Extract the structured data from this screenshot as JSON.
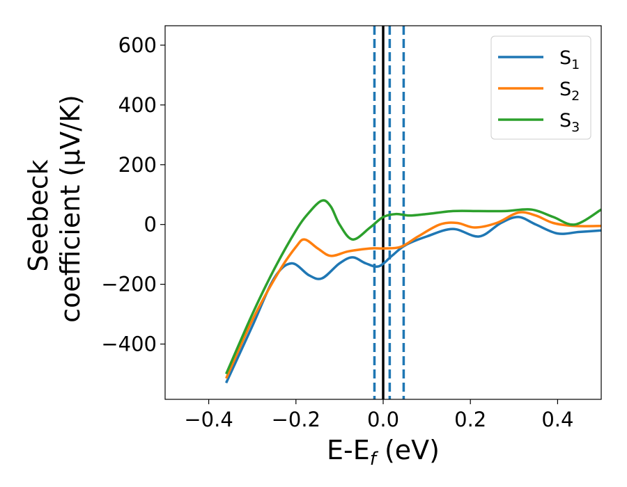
{
  "chart_data": {
    "type": "line",
    "xlabel": {
      "main": "E-E",
      "sub": "f",
      "rest": " (eV)"
    },
    "ylabel": {
      "line1": "Seebeck",
      "line2": "coefficient  (μV/K)"
    },
    "xlim": [
      -0.5,
      0.5
    ],
    "ylim": [
      -585,
      665
    ],
    "xticks": [
      -0.4,
      -0.2,
      0.0,
      0.2,
      0.4
    ],
    "xtick_labels": [
      "−0.4",
      "−0.2",
      "0.0",
      "0.2",
      "0.4"
    ],
    "yticks": [
      -400,
      -200,
      0,
      200,
      400,
      600
    ],
    "ytick_labels": [
      "−400",
      "−200",
      "0",
      "200",
      "400",
      "600"
    ],
    "grid": false,
    "legend_position": "top-right",
    "vlines": [
      {
        "x": 0.0,
        "style": "solid",
        "color": "#000000"
      },
      {
        "x": -0.02,
        "style": "dashed",
        "color": "#1f77b4"
      },
      {
        "x": 0.015,
        "style": "dashed",
        "color": "#1f77b4"
      },
      {
        "x": 0.047,
        "style": "dashed",
        "color": "#1f77b4"
      }
    ],
    "series": [
      {
        "name": "S",
        "sub": "1",
        "color": "#1f77b4",
        "x": [
          -0.36,
          -0.3,
          -0.25,
          -0.21,
          -0.17,
          -0.14,
          -0.1,
          -0.07,
          -0.04,
          -0.01,
          0.02,
          0.05,
          0.1,
          0.16,
          0.22,
          0.27,
          0.31,
          0.35,
          0.4,
          0.45,
          0.5
        ],
        "y": [
          -530,
          -340,
          -180,
          -130,
          -170,
          -180,
          -130,
          -110,
          -130,
          -140,
          -105,
          -70,
          -40,
          -15,
          -40,
          5,
          25,
          0,
          -30,
          -25,
          -20
        ]
      },
      {
        "name": "S",
        "sub": "2",
        "color": "#ff7f0e",
        "x": [
          -0.36,
          -0.3,
          -0.24,
          -0.2,
          -0.18,
          -0.15,
          -0.12,
          -0.08,
          -0.03,
          0.0,
          0.04,
          0.08,
          0.13,
          0.17,
          0.21,
          0.26,
          0.31,
          0.35,
          0.39,
          0.44,
          0.5
        ],
        "y": [
          -515,
          -320,
          -160,
          -75,
          -50,
          -80,
          -105,
          -90,
          -80,
          -80,
          -75,
          -40,
          0,
          5,
          -10,
          5,
          40,
          30,
          5,
          -5,
          -5
        ]
      },
      {
        "name": "S",
        "sub": "3",
        "color": "#2ca02c",
        "x": [
          -0.36,
          -0.3,
          -0.25,
          -0.2,
          -0.17,
          -0.14,
          -0.12,
          -0.1,
          -0.07,
          -0.03,
          0.0,
          0.03,
          0.06,
          0.1,
          0.16,
          0.22,
          0.28,
          0.34,
          0.39,
          0.44,
          0.5
        ],
        "y": [
          -500,
          -300,
          -150,
          -20,
          40,
          80,
          60,
          0,
          -50,
          -10,
          25,
          35,
          30,
          35,
          45,
          45,
          45,
          50,
          25,
          0,
          50
        ]
      }
    ]
  }
}
